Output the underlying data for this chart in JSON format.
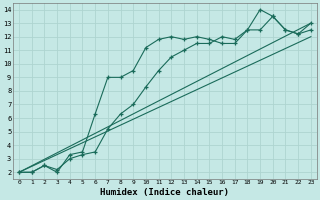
{
  "xlabel": "Humidex (Indice chaleur)",
  "bg_color": "#c5e8e5",
  "grid_color": "#aed4d0",
  "line_color": "#1a6b5a",
  "xlim": [
    -0.5,
    23.5
  ],
  "ylim": [
    1.5,
    14.5
  ],
  "xticks": [
    0,
    1,
    2,
    3,
    4,
    5,
    6,
    7,
    8,
    9,
    10,
    11,
    12,
    13,
    14,
    15,
    16,
    17,
    18,
    19,
    20,
    21,
    22,
    23
  ],
  "yticks": [
    2,
    3,
    4,
    5,
    6,
    7,
    8,
    9,
    10,
    11,
    12,
    13,
    14
  ],
  "series1_x": [
    0,
    1,
    2,
    3,
    4,
    5,
    6,
    7,
    8,
    9,
    10,
    11,
    12,
    13,
    14,
    15,
    16,
    17,
    18,
    19,
    20,
    21,
    22,
    23
  ],
  "series1_y": [
    2.0,
    2.0,
    2.5,
    2.2,
    3.0,
    3.3,
    3.5,
    5.2,
    6.3,
    7.0,
    8.3,
    9.5,
    10.5,
    11.0,
    11.5,
    11.5,
    12.0,
    11.8,
    12.5,
    12.5,
    13.5,
    12.5,
    12.2,
    13.0
  ],
  "series2_x": [
    0,
    1,
    2,
    3,
    4,
    5,
    6,
    7,
    8,
    9,
    10,
    11,
    12,
    13,
    14,
    15,
    16,
    17,
    18,
    19,
    20,
    21,
    22,
    23
  ],
  "series2_y": [
    2.0,
    2.0,
    2.5,
    2.0,
    3.3,
    3.5,
    6.3,
    9.0,
    9.0,
    9.5,
    11.2,
    11.8,
    12.0,
    11.8,
    12.0,
    11.8,
    11.5,
    11.5,
    12.5,
    14.0,
    13.5,
    12.5,
    12.2,
    12.5
  ],
  "series3_x": [
    0,
    23
  ],
  "series3_y": [
    2.0,
    13.0
  ],
  "series4_x": [
    0,
    23
  ],
  "series4_y": [
    2.0,
    12.0
  ]
}
